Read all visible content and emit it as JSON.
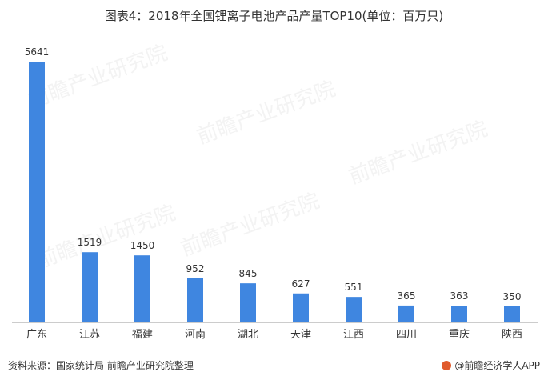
{
  "title": "图表4：2018年全国锂离子电池产品产量TOP10(单位：百万只)",
  "source": "资料来源：国家统计局 前瞻产业研究院整理",
  "brand": "@前瞻经济学人APP",
  "watermark": "前瞻产业研究院",
  "colors": {
    "bar": "#3f86e0",
    "axis": "#999999",
    "text": "#333333"
  },
  "chart_data": {
    "type": "bar",
    "title": "图表4：2018年全国锂离子电池产品产量TOP10(单位：百万只)",
    "xlabel": "",
    "ylabel": "",
    "categories": [
      "广东",
      "江苏",
      "福建",
      "河南",
      "湖北",
      "天津",
      "江西",
      "四川",
      "重庆",
      "陕西"
    ],
    "values": [
      5641,
      1519,
      1450,
      952,
      845,
      627,
      551,
      365,
      363,
      350
    ],
    "ylim": [
      0,
      5641
    ],
    "grid": false,
    "data_labels": true
  }
}
